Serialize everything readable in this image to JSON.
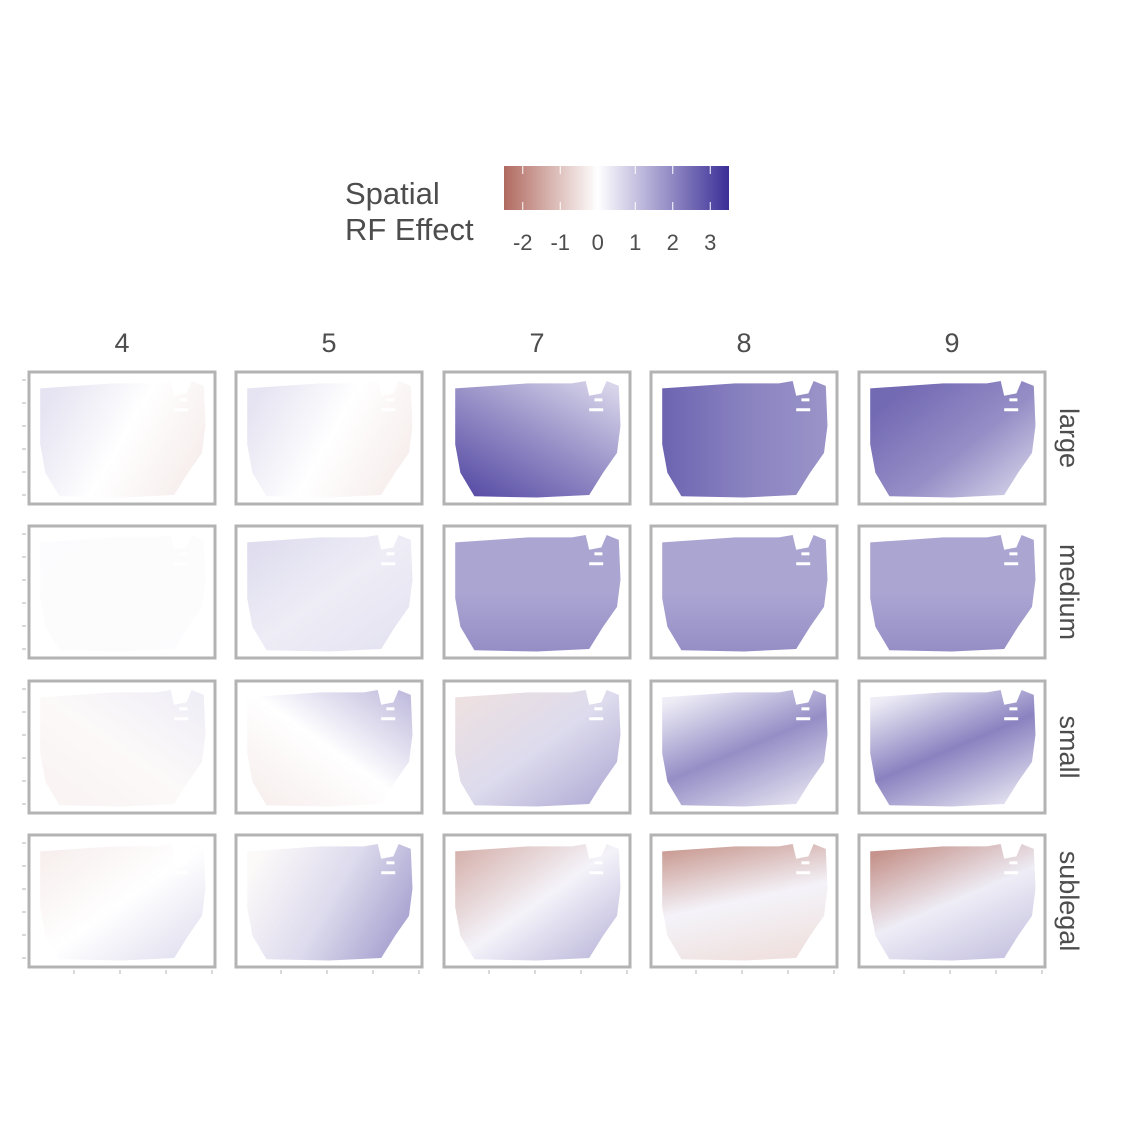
{
  "legend": {
    "title_line1": "Spatial",
    "title_line2": "RF Effect",
    "min": -2.5,
    "max": 3.5,
    "ticks": [
      -2,
      -1,
      0,
      1,
      2,
      3
    ],
    "tick_labels": [
      "-2",
      "-1",
      "0",
      "1",
      "2",
      "3"
    ],
    "color_low": "#b06a60",
    "color_mid": "#ffffff",
    "color_high": "#3b2e96"
  },
  "chart_data": {
    "type": "heatmap",
    "columns": [
      "4",
      "5",
      "7",
      "8",
      "9"
    ],
    "rows": [
      "large",
      "medium",
      "small",
      "sublegal"
    ],
    "value_range": [
      -2.5,
      3.5
    ],
    "panel_border_color": "#b3b3b3",
    "panels": [
      {
        "row": "large",
        "column": "4",
        "mean": 0.1,
        "pattern": "west-east gradient, light purple west, light red east"
      },
      {
        "row": "large",
        "column": "5",
        "mean": 0.1,
        "pattern": "west-east gradient, light purple west, light red east"
      },
      {
        "row": "large",
        "column": "7",
        "mean": 2.0,
        "pattern": "strong purple, darkest in south-west"
      },
      {
        "row": "large",
        "column": "8",
        "mean": 2.2,
        "pattern": "strong purple throughout"
      },
      {
        "row": "large",
        "column": "9",
        "mean": 1.9,
        "pattern": "strong purple, lighter in south-east"
      },
      {
        "row": "medium",
        "column": "4",
        "mean": 0.0,
        "pattern": "near white"
      },
      {
        "row": "medium",
        "column": "5",
        "mean": 0.4,
        "pattern": "light purple"
      },
      {
        "row": "medium",
        "column": "7",
        "mean": 1.6,
        "pattern": "uniform medium purple"
      },
      {
        "row": "medium",
        "column": "8",
        "mean": 1.6,
        "pattern": "uniform medium purple"
      },
      {
        "row": "medium",
        "column": "9",
        "mean": 1.6,
        "pattern": "uniform medium purple"
      },
      {
        "row": "small",
        "column": "4",
        "mean": -0.1,
        "pattern": "faint red, faint purple north-east"
      },
      {
        "row": "small",
        "column": "5",
        "mean": 0.2,
        "pattern": "faint red south-west, purple north-east"
      },
      {
        "row": "small",
        "column": "7",
        "mean": 0.7,
        "pattern": "light red north-west, purple south-east"
      },
      {
        "row": "small",
        "column": "8",
        "mean": 0.9,
        "pattern": "purple centre, white edges"
      },
      {
        "row": "small",
        "column": "9",
        "mean": 1.1,
        "pattern": "purple centre, white edges"
      },
      {
        "row": "sublegal",
        "column": "4",
        "mean": 0.0,
        "pattern": "faint red north, faint purple south-east"
      },
      {
        "row": "sublegal",
        "column": "5",
        "mean": 0.5,
        "pattern": "purple east"
      },
      {
        "row": "sublegal",
        "column": "7",
        "mean": 0.1,
        "pattern": "red north-west, purple south-east"
      },
      {
        "row": "sublegal",
        "column": "8",
        "mean": -0.6,
        "pattern": "red north, mixed white and purple"
      },
      {
        "row": "sublegal",
        "column": "9",
        "mean": -0.2,
        "pattern": "red north, purple east"
      }
    ]
  }
}
